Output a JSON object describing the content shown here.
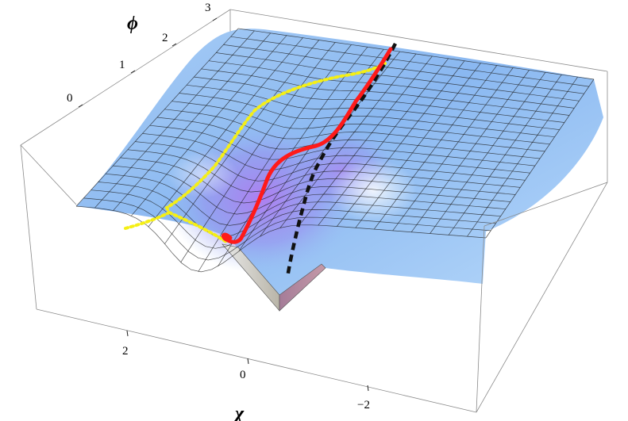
{
  "chart_data": {
    "type": "surface3d",
    "title": "",
    "axes": {
      "phi": {
        "label": "ϕ",
        "ticks": [
          "0",
          "1",
          "2",
          "3"
        ],
        "range": [
          -0.5,
          3.2
        ]
      },
      "chi": {
        "label": "χ",
        "ticks": [
          "2",
          "0",
          "−2"
        ],
        "range": [
          3.6,
          -3.6
        ]
      }
    },
    "surface": {
      "colormap": "light blue with violet trough",
      "mesh": true,
      "description_shape": "valley along chi=0 deepening toward phi=0, cusp at phi=0, plateau elsewhere"
    },
    "series": [],
    "line_styles": {
      "red": {
        "color": "#ff1a1a",
        "style": "solid"
      },
      "black": {
        "color": "#111111",
        "style": "dashed"
      },
      "yellow": {
        "color": "#f2ee16",
        "style": "dotted"
      }
    },
    "colors": {
      "surface_light": "#c6e2fa",
      "surface_mid": "#8eb9f0",
      "trough": "#a46ee8",
      "mesh": "#111111",
      "box": "#8a8a8a"
    }
  }
}
